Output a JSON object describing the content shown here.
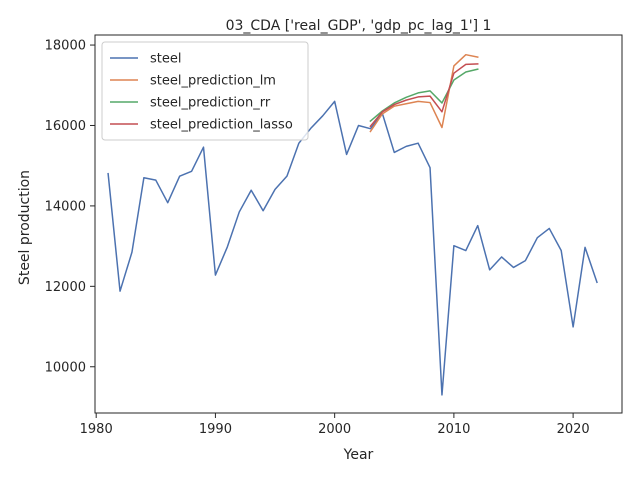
{
  "chart_data": {
    "type": "line",
    "title": "03_CDA ['real_GDP', 'gdp_pc_lag_1'] 1",
    "xlabel": "Year",
    "ylabel": "Steel production",
    "xlim": [
      1979.9,
      2024.1
    ],
    "ylim": [
      8850,
      18250
    ],
    "xticks": [
      1980,
      1990,
      2000,
      2010,
      2020
    ],
    "yticks": [
      10000,
      12000,
      14000,
      16000,
      18000
    ],
    "legend_position": "top-left",
    "grid": false,
    "series": [
      {
        "name": "steel",
        "color": "#4c72b0",
        "x": [
          1981,
          1982,
          1983,
          1984,
          1985,
          1986,
          1987,
          1988,
          1989,
          1990,
          1991,
          1992,
          1993,
          1994,
          1995,
          1996,
          1997,
          1998,
          1999,
          2000,
          2001,
          2002,
          2003,
          2004,
          2005,
          2006,
          2007,
          2008,
          2009,
          2010,
          2011,
          2012,
          2013,
          2014,
          2015,
          2016,
          2017,
          2018,
          2019,
          2020,
          2021,
          2022
        ],
        "y": [
          14800,
          11880,
          12850,
          14700,
          14640,
          14080,
          14740,
          14860,
          15460,
          12280,
          12980,
          13850,
          14390,
          13880,
          14410,
          14740,
          15560,
          15930,
          16240,
          16600,
          15280,
          16000,
          15920,
          16300,
          15330,
          15480,
          15560,
          14950,
          9300,
          13010,
          12890,
          13510,
          12410,
          12730,
          12470,
          12640,
          13210,
          13440,
          12890,
          10990,
          12970,
          12100
        ]
      },
      {
        "name": "steel_prediction_lm",
        "color": "#dd8452",
        "x": [
          2003,
          2004,
          2005,
          2006,
          2007,
          2008,
          2009,
          2010,
          2011,
          2012
        ],
        "y": [
          15850,
          16290,
          16480,
          16540,
          16600,
          16570,
          15950,
          17480,
          17760,
          17700
        ]
      },
      {
        "name": "steel_prediction_rr",
        "color": "#55a868",
        "x": [
          2003,
          2004,
          2005,
          2006,
          2007,
          2008,
          2009,
          2010,
          2011,
          2012
        ],
        "y": [
          16110,
          16360,
          16560,
          16700,
          16810,
          16860,
          16560,
          17130,
          17330,
          17400
        ]
      },
      {
        "name": "steel_prediction_lasso",
        "color": "#c44e52",
        "x": [
          2003,
          2004,
          2005,
          2006,
          2007,
          2008,
          2009,
          2010,
          2011,
          2012
        ],
        "y": [
          15980,
          16340,
          16520,
          16630,
          16710,
          16730,
          16340,
          17300,
          17520,
          17530
        ]
      }
    ]
  }
}
